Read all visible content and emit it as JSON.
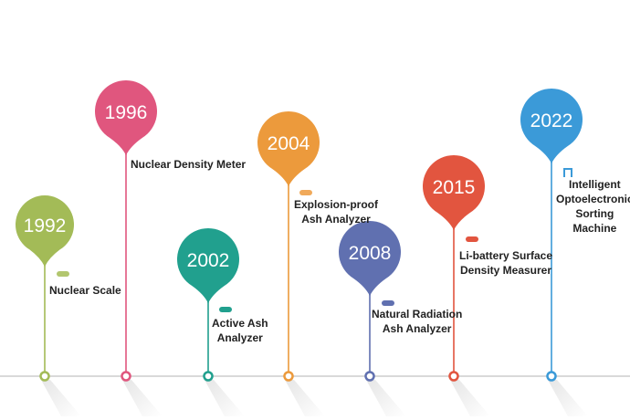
{
  "timeline": {
    "milestones": [
      {
        "year": "1992",
        "label": "Nuclear Scale",
        "color": "#a3bb57",
        "dash_color": "#b2c66e"
      },
      {
        "year": "1996",
        "label": "Nuclear Density Meter",
        "color": "#e0567e",
        "dash_color": "#e0567e"
      },
      {
        "year": "2002",
        "label": "Active Ash\nAnalyzer",
        "color": "#21a08e",
        "dash_color": "#21a08e"
      },
      {
        "year": "2004",
        "label": "Explosion-proof\nAsh Analyzer",
        "color": "#ec9a3c",
        "dash_color": "#f0a95a"
      },
      {
        "year": "2008",
        "label": "Natural Radiation\nAsh Analyzer",
        "color": "#6070b0",
        "dash_color": "#6070b0"
      },
      {
        "year": "2015",
        "label": "Li-battery Surface\nDensity Measurer",
        "color": "#e2553f",
        "dash_color": "#e2553f"
      },
      {
        "year": "2022",
        "label": "Intelligent\nOptoelectronic\nSorting\nMachine",
        "color": "#3b9ad8",
        "dash_color": "#3b9ad8"
      }
    ]
  }
}
